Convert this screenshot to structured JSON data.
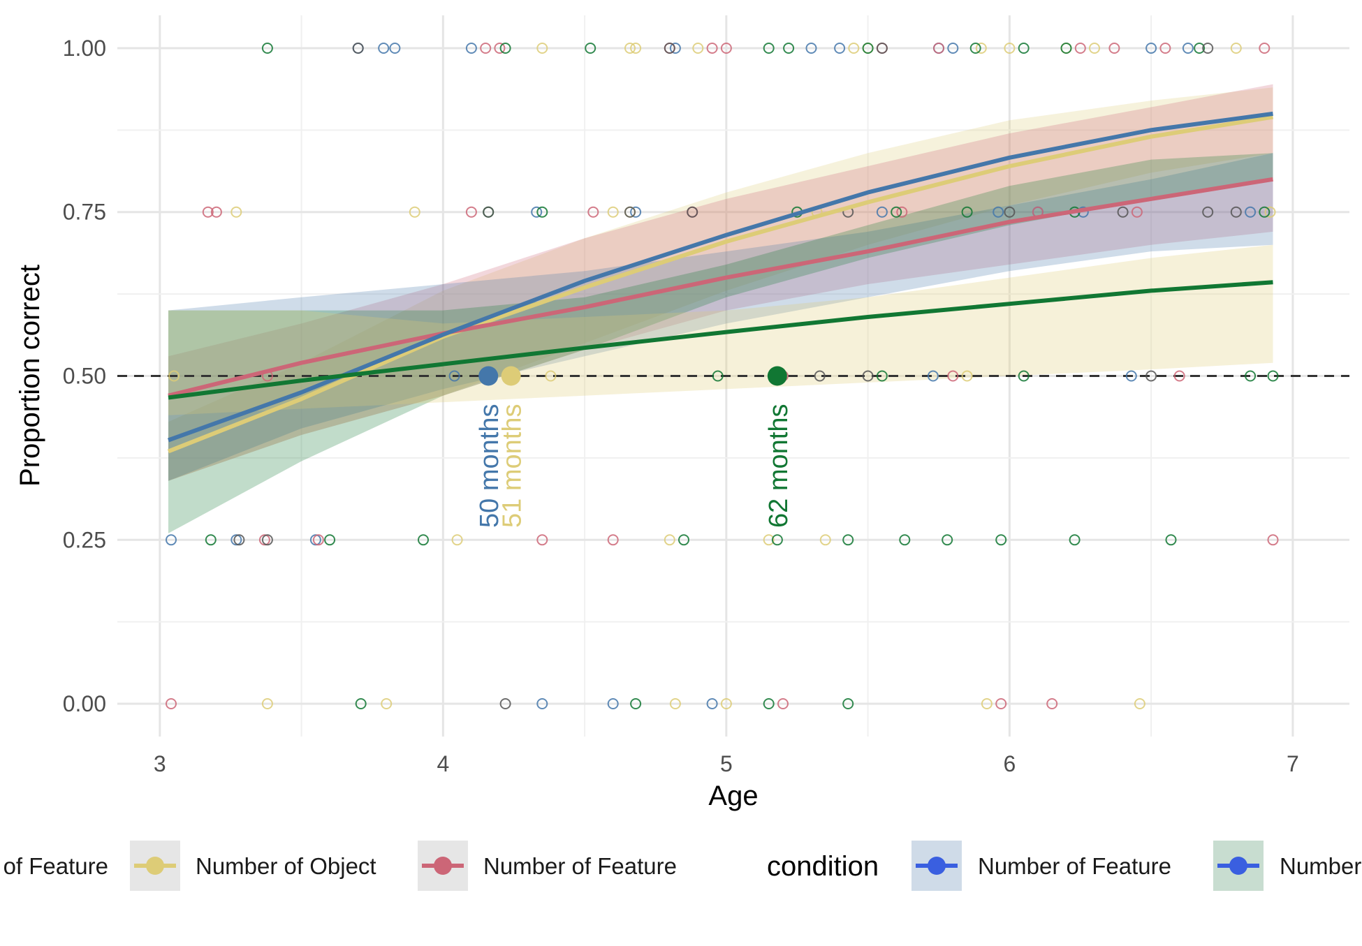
{
  "chart_data": {
    "type": "line",
    "title": "",
    "xlabel": "Age",
    "ylabel": "Proportion correct",
    "xlim": [
      2.85,
      7.2
    ],
    "ylim": [
      -0.05,
      1.05
    ],
    "x_ticks": [
      3,
      4,
      5,
      6,
      7
    ],
    "x_tick_labels": [
      "3",
      "4",
      "5",
      "6",
      "7"
    ],
    "y_ticks": [
      0,
      0.25,
      0.5,
      0.75,
      1
    ],
    "y_tick_labels": [
      "0.00",
      "0.25",
      "0.50",
      "0.75",
      "1.00"
    ],
    "grid": true,
    "reference_line": {
      "y": 0.5,
      "style": "dashed",
      "color": "#333333"
    },
    "series": [
      {
        "color": "#ddcc77",
        "x": [
          3.03,
          3.5,
          4.0,
          4.5,
          5.0,
          5.5,
          6.0,
          6.5,
          6.93
        ],
        "y": [
          0.385,
          0.465,
          0.56,
          0.635,
          0.705,
          0.765,
          0.82,
          0.865,
          0.895
        ],
        "lower": [
          0.34,
          0.41,
          0.47,
          0.55,
          0.63,
          0.7,
          0.76,
          0.81,
          0.84
        ],
        "upper": [
          0.43,
          0.52,
          0.63,
          0.71,
          0.78,
          0.84,
          0.89,
          0.92,
          0.94
        ]
      },
      {
        "color": "#cc6677",
        "x": [
          3.03,
          3.5,
          4.0,
          4.5,
          5.0,
          5.5,
          6.0,
          6.5,
          6.93
        ],
        "y": [
          0.47,
          0.52,
          0.565,
          0.605,
          0.65,
          0.69,
          0.735,
          0.77,
          0.8
        ],
        "lower": [
          0.34,
          0.41,
          0.47,
          0.54,
          0.6,
          0.64,
          0.67,
          0.7,
          0.72
        ],
        "upper": [
          0.53,
          0.58,
          0.64,
          0.71,
          0.77,
          0.82,
          0.87,
          0.91,
          0.945
        ]
      },
      {
        "color": "#4477aa",
        "x": [
          3.03,
          3.5,
          4.0,
          4.5,
          5.0,
          5.5,
          6.0,
          6.5,
          6.93
        ],
        "y": [
          0.402,
          0.475,
          0.563,
          0.645,
          0.715,
          0.78,
          0.833,
          0.875,
          0.9
        ],
        "lower": [
          0.34,
          0.42,
          0.48,
          0.53,
          0.58,
          0.62,
          0.66,
          0.69,
          0.7
        ],
        "upper": [
          0.6,
          0.62,
          0.64,
          0.66,
          0.69,
          0.72,
          0.76,
          0.8,
          0.84
        ]
      },
      {
        "color": "#117733",
        "x": [
          3.03,
          3.5,
          4.0,
          4.5,
          5.0,
          5.5,
          6.0,
          6.5,
          6.93
        ],
        "y": [
          0.467,
          0.493,
          0.518,
          0.543,
          0.567,
          0.59,
          0.61,
          0.63,
          0.643
        ],
        "lower": [
          0.26,
          0.37,
          0.47,
          0.54,
          0.62,
          0.68,
          0.73,
          0.77,
          0.8
        ],
        "upper": [
          0.6,
          0.6,
          0.6,
          0.62,
          0.67,
          0.73,
          0.79,
          0.83,
          0.84
        ]
      },
      {
        "color": "#ddcc77",
        "x": [
          3.03,
          3.5,
          4.0,
          4.5,
          5.0,
          5.5,
          6.0,
          6.5,
          6.93
        ],
        "y": [
          0.44,
          0.45,
          0.46,
          0.47,
          0.48,
          0.49,
          0.5,
          0.51,
          0.52
        ],
        "lower": [
          0.44,
          0.45,
          0.46,
          0.47,
          0.48,
          0.49,
          0.5,
          0.51,
          0.52
        ],
        "upper": [
          0.6,
          0.6,
          0.58,
          0.59,
          0.6,
          0.62,
          0.65,
          0.68,
          0.7
        ],
        "band_only": true
      }
    ],
    "threshold_points": [
      {
        "x": 4.16,
        "y": 0.5,
        "color": "#4477aa",
        "label": "50  months"
      },
      {
        "x": 4.24,
        "y": 0.5,
        "color": "#ddcc77",
        "label": "51  months"
      },
      {
        "x": 5.18,
        "y": 0.5,
        "color": "#117733",
        "label": "62  months"
      }
    ],
    "scatter": [
      {
        "color": "#4477aa",
        "points": [
          [
            3.7,
            1
          ],
          [
            3.79,
            1
          ],
          [
            3.83,
            1
          ],
          [
            4.1,
            1
          ],
          [
            4.82,
            1
          ],
          [
            5.3,
            1
          ],
          [
            5.4,
            1
          ],
          [
            5.75,
            1
          ],
          [
            5.8,
            1
          ],
          [
            6.5,
            1
          ],
          [
            6.63,
            1
          ],
          [
            3.04,
            0.25
          ],
          [
            3.27,
            0.25
          ],
          [
            3.55,
            0.25
          ],
          [
            4.33,
            0.75
          ],
          [
            4.68,
            0.75
          ],
          [
            5.55,
            0.75
          ],
          [
            5.96,
            0.75
          ],
          [
            6.1,
            0.75
          ],
          [
            6.26,
            0.75
          ],
          [
            6.85,
            0.75
          ],
          [
            4.35,
            0
          ],
          [
            4.6,
            0
          ],
          [
            4.95,
            0
          ],
          [
            6.43,
            0.5
          ],
          [
            5.73,
            0.5
          ],
          [
            4.04,
            0.5
          ]
        ]
      },
      {
        "color": "#ddcc77",
        "points": [
          [
            4.35,
            1
          ],
          [
            4.66,
            1
          ],
          [
            4.68,
            1
          ],
          [
            4.9,
            1
          ],
          [
            5.45,
            1
          ],
          [
            5.5,
            1
          ],
          [
            5.9,
            1
          ],
          [
            6.0,
            1
          ],
          [
            6.2,
            1
          ],
          [
            6.3,
            1
          ],
          [
            6.8,
            1
          ],
          [
            3.27,
            0.75
          ],
          [
            3.9,
            0.75
          ],
          [
            4.6,
            0.75
          ],
          [
            4.66,
            0.75
          ],
          [
            5.32,
            0.75
          ],
          [
            6.92,
            0.75
          ],
          [
            4.05,
            0.25
          ],
          [
            4.8,
            0.25
          ],
          [
            5.15,
            0.25
          ],
          [
            5.35,
            0.25
          ],
          [
            3.38,
            0
          ],
          [
            3.8,
            0
          ],
          [
            4.82,
            0
          ],
          [
            5.0,
            0
          ],
          [
            5.92,
            0
          ],
          [
            6.46,
            0
          ],
          [
            3.05,
            0.5
          ],
          [
            4.38,
            0.5
          ],
          [
            5.85,
            0.5
          ]
        ]
      },
      {
        "color": "#cc6677",
        "points": [
          [
            4.15,
            1
          ],
          [
            4.2,
            1
          ],
          [
            4.8,
            1
          ],
          [
            4.95,
            1
          ],
          [
            5.0,
            1
          ],
          [
            5.55,
            1
          ],
          [
            5.75,
            1
          ],
          [
            6.25,
            1
          ],
          [
            6.37,
            1
          ],
          [
            6.55,
            1
          ],
          [
            6.9,
            1
          ],
          [
            3.17,
            0.75
          ],
          [
            3.2,
            0.75
          ],
          [
            4.1,
            0.75
          ],
          [
            4.53,
            0.75
          ],
          [
            4.88,
            0.75
          ],
          [
            5.62,
            0.75
          ],
          [
            6.1,
            0.75
          ],
          [
            6.45,
            0.75
          ],
          [
            3.37,
            0.25
          ],
          [
            3.56,
            0.25
          ],
          [
            4.35,
            0.25
          ],
          [
            4.6,
            0.25
          ],
          [
            6.93,
            0.25
          ],
          [
            3.04,
            0
          ],
          [
            5.2,
            0
          ],
          [
            5.97,
            0
          ],
          [
            6.15,
            0
          ],
          [
            3.38,
            0.5
          ],
          [
            5.2,
            0.5
          ],
          [
            5.8,
            0.5
          ],
          [
            6.6,
            0.5
          ]
        ]
      },
      {
        "color": "#117733",
        "points": [
          [
            3.38,
            1
          ],
          [
            4.22,
            1
          ],
          [
            4.52,
            1
          ],
          [
            5.15,
            1
          ],
          [
            5.22,
            1
          ],
          [
            5.5,
            1
          ],
          [
            5.88,
            1
          ],
          [
            6.05,
            1
          ],
          [
            6.2,
            1
          ],
          [
            6.67,
            1
          ],
          [
            4.16,
            0.75
          ],
          [
            4.35,
            0.75
          ],
          [
            5.25,
            0.75
          ],
          [
            5.6,
            0.75
          ],
          [
            5.85,
            0.75
          ],
          [
            6.23,
            0.75
          ],
          [
            6.9,
            0.75
          ],
          [
            3.18,
            0.25
          ],
          [
            3.6,
            0.25
          ],
          [
            3.93,
            0.25
          ],
          [
            4.85,
            0.25
          ],
          [
            5.18,
            0.25
          ],
          [
            5.43,
            0.25
          ],
          [
            5.63,
            0.25
          ],
          [
            5.78,
            0.25
          ],
          [
            5.97,
            0.25
          ],
          [
            6.23,
            0.25
          ],
          [
            6.57,
            0.25
          ],
          [
            3.71,
            0
          ],
          [
            4.68,
            0
          ],
          [
            5.15,
            0
          ],
          [
            5.43,
            0
          ],
          [
            4.97,
            0.5
          ],
          [
            5.55,
            0.5
          ],
          [
            6.05,
            0.5
          ],
          [
            6.85,
            0.5
          ],
          [
            6.93,
            0.5
          ]
        ]
      },
      {
        "color": "#555555",
        "points": [
          [
            3.7,
            1
          ],
          [
            4.8,
            1
          ],
          [
            5.55,
            1
          ],
          [
            6.7,
            1
          ],
          [
            4.16,
            0.75
          ],
          [
            4.66,
            0.75
          ],
          [
            4.88,
            0.75
          ],
          [
            5.43,
            0.75
          ],
          [
            6.0,
            0.75
          ],
          [
            6.4,
            0.75
          ],
          [
            6.7,
            0.75
          ],
          [
            6.8,
            0.75
          ],
          [
            3.38,
            0.25
          ],
          [
            3.28,
            0.25
          ],
          [
            4.22,
            0
          ],
          [
            5.33,
            0.5
          ],
          [
            5.5,
            0.5
          ],
          [
            6.5,
            0.5
          ]
        ]
      }
    ],
    "legend": {
      "placement": "bottom",
      "items": [
        {
          "label": "Number of Feature",
          "color": "#4477aa",
          "bg": "#e6e6e6"
        },
        {
          "label": "Number of Object",
          "color": "#ddcc77",
          "bg": "#e6e6e6"
        },
        {
          "label": "Number of Feature",
          "color": "#cc6677",
          "bg": "#e6e6e6"
        }
      ],
      "title": "condition",
      "condition_items": [
        {
          "label": "Number of Feature",
          "color": "#3a5fe0",
          "bg": "#cfdbe8"
        },
        {
          "label": "Number of Object",
          "color": "#3a5fe0",
          "bg": "#c8ddd0"
        }
      ]
    }
  }
}
